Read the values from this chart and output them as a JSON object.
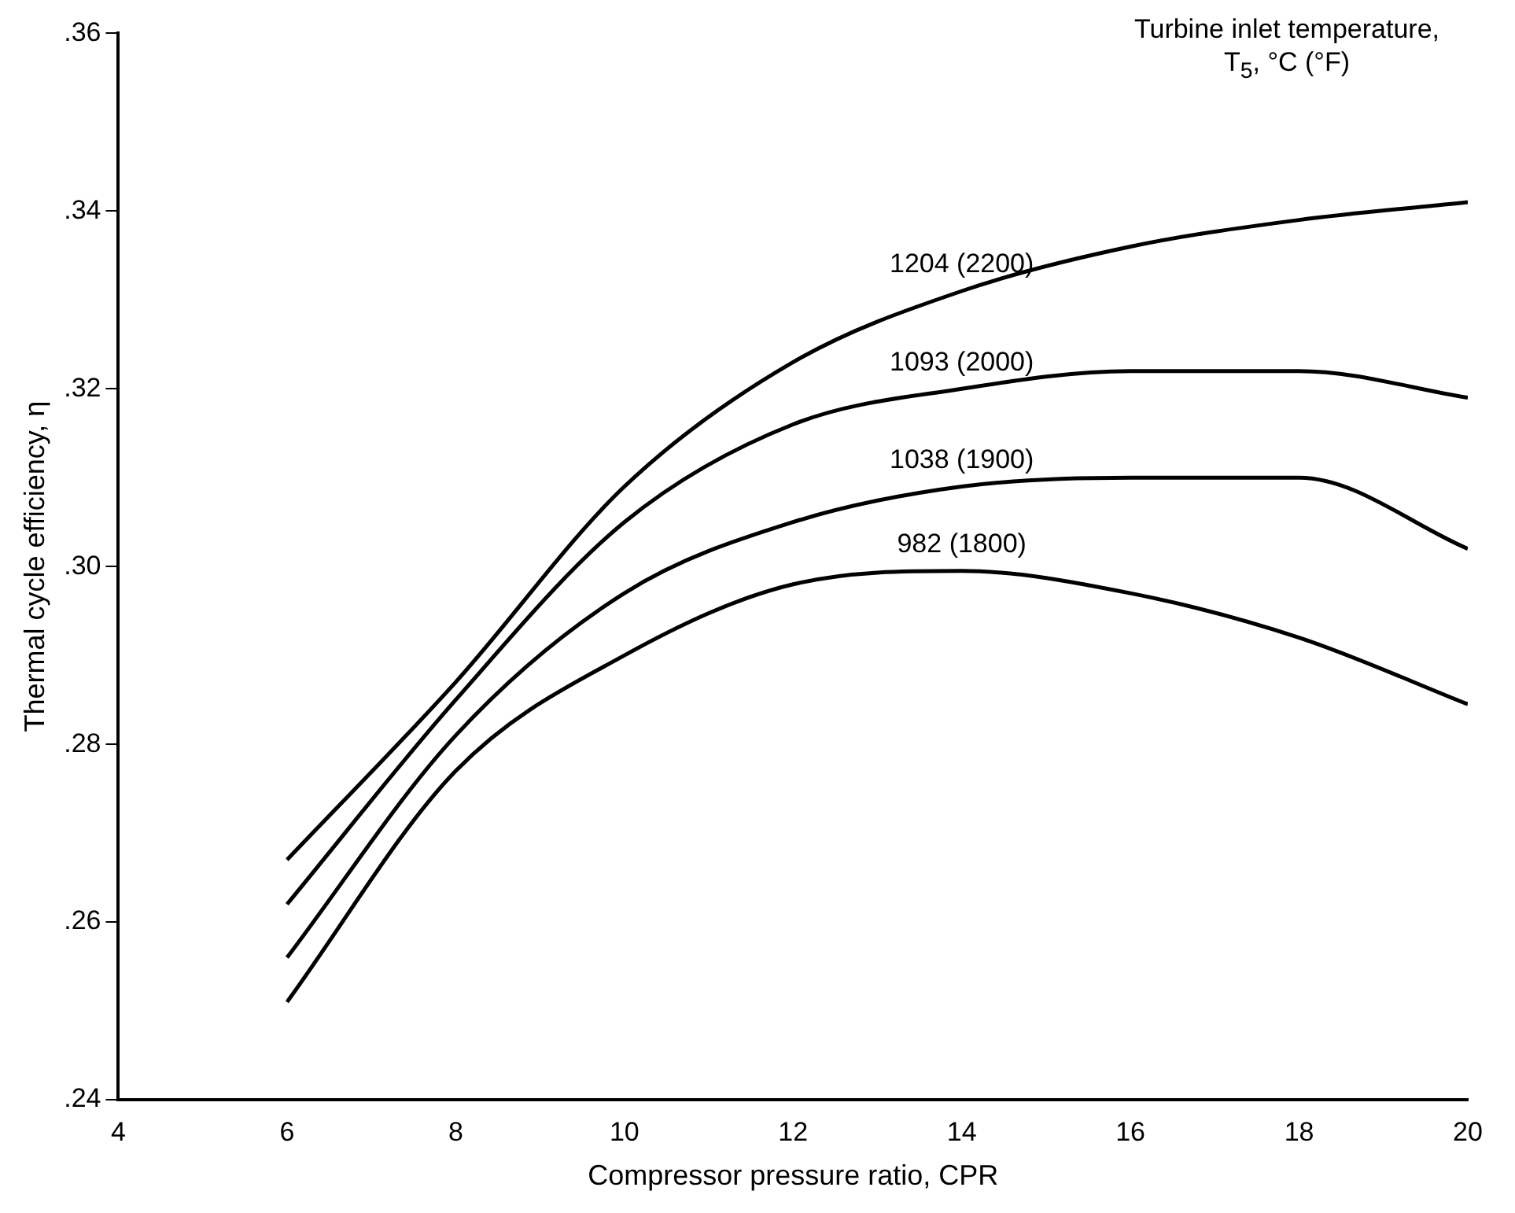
{
  "chart_data": {
    "type": "line",
    "xlabel": "Compressor pressure ratio, CPR",
    "ylabel": "Thermal cycle efficiency, η",
    "legend_title": "Turbine inlet temperature, T$_{5}$, °C (°F)",
    "x": [
      6,
      8,
      10,
      12,
      14,
      16,
      18,
      20
    ],
    "series": [
      {
        "name": "1204 (2200)",
        "color": "#000000",
        "values": [
          0.267,
          0.287,
          0.309,
          0.323,
          0.331,
          0.336,
          0.339,
          0.341
        ]
      },
      {
        "name": "1093 (2000)",
        "color": "#000000",
        "values": [
          0.262,
          0.285,
          0.305,
          0.316,
          0.32,
          0.322,
          0.322,
          0.319
        ]
      },
      {
        "name": "1038 (1900)",
        "color": "#000000",
        "values": [
          0.256,
          0.281,
          0.297,
          0.305,
          0.309,
          0.31,
          0.31,
          0.302
        ]
      },
      {
        "name": "982 (1800)",
        "color": "#000000",
        "values": [
          0.251,
          0.277,
          0.29,
          0.298,
          0.2995,
          0.297,
          0.292,
          0.2845
        ]
      }
    ],
    "xlim": [
      4,
      20
    ],
    "xticks": [
      4,
      6,
      8,
      10,
      12,
      14,
      16,
      18,
      20
    ],
    "ylim": [
      0.24,
      0.36
    ],
    "yticks": [
      {
        "value": 0.24,
        "label": ".24"
      },
      {
        "value": 0.26,
        "label": ".26"
      },
      {
        "value": 0.28,
        "label": ".28"
      },
      {
        "value": 0.3,
        "label": ".30"
      },
      {
        "value": 0.32,
        "label": ".32"
      },
      {
        "value": 0.34,
        "label": ".34"
      },
      {
        "value": 0.36,
        "label": ".36"
      }
    ],
    "grid": false,
    "legend": false,
    "marker": "none",
    "line_style": "solid"
  }
}
